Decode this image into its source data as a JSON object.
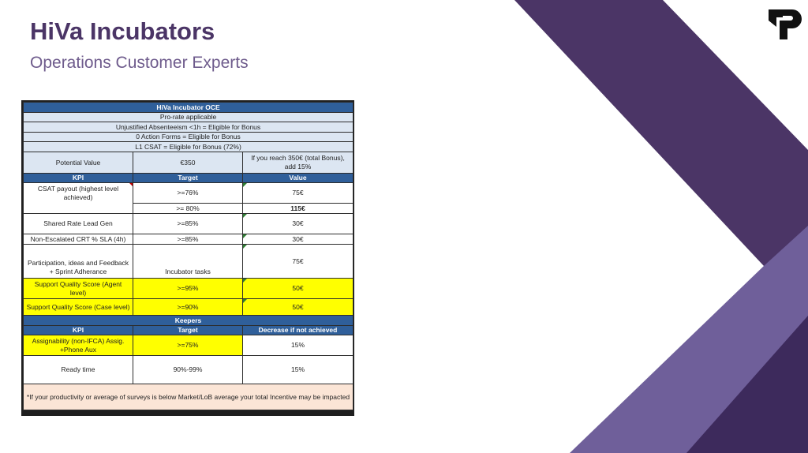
{
  "slide": {
    "title": "HiVa Incubators",
    "subtitle": "Operations Customer Experts"
  },
  "colors": {
    "header_blue": "#2f5f9a",
    "light_blue": "#dce6f2",
    "highlight_yellow": "#ffff00",
    "note_pink": "#fbe5d6",
    "deco_dark_purple": "#4b3566",
    "deco_mid_purple": "#6f5f9a",
    "deco_deep_purple": "#3d2a5c"
  },
  "logo": {
    "icon": "tp-logo-icon"
  },
  "table": {
    "header": "HiVa Incubator OCE",
    "conditions": [
      "Pro-rate applicable",
      "Unjustified Absenteeism <1h = Eligible for Bonus",
      "0 Action Forms = Eligible for Bonus",
      "L1 CSAT = Eligible for Bonus (72%)"
    ],
    "potential": {
      "label": "Potential Value",
      "value": "€350",
      "note": "If you reach 350€ (total Bonus), add 15%"
    },
    "kpi_headers": [
      "KPI",
      "Target",
      "Value"
    ],
    "kpis": {
      "csat": {
        "kpi": "CSAT payout (highest level achieved)",
        "target1": ">=76%",
        "value1": "75€",
        "target2": ">= 80%",
        "value2": "115€"
      },
      "shared_rate": {
        "kpi": "Shared Rate Lead Gen",
        "target": ">=85%",
        "value": "30€"
      },
      "non_escalated": {
        "kpi": "Non-Escalated CRT % SLA (4h)",
        "target": ">=85%",
        "value": "30€"
      },
      "participation": {
        "kpi": "Participation, ideas and Feedback + Sprint Adherance",
        "target": "Incubator tasks",
        "value": "75€"
      },
      "sqs_agent": {
        "kpi": "Support Quality Score (Agent level)",
        "target": ">=95%",
        "value": "50€"
      },
      "sqs_case": {
        "kpi": "Support Quality Score (Case level)",
        "target": ">=90%",
        "value": "50€"
      }
    },
    "keepers_title": "Keepers",
    "keeper_headers": [
      "KPI",
      "Target",
      "Decrease if not achieved"
    ],
    "keepers": {
      "assignability": {
        "kpi": "Assignability (non-IFCA) Assig. +Phone Aux",
        "target": ">=75%",
        "value": "15%"
      },
      "ready_time": {
        "kpi": "Ready time",
        "target": "90%-99%",
        "value": "15%"
      }
    },
    "footnote": "*If your productivity or average of surveys is below Market/LoB average your total Incentive may be impacted"
  }
}
